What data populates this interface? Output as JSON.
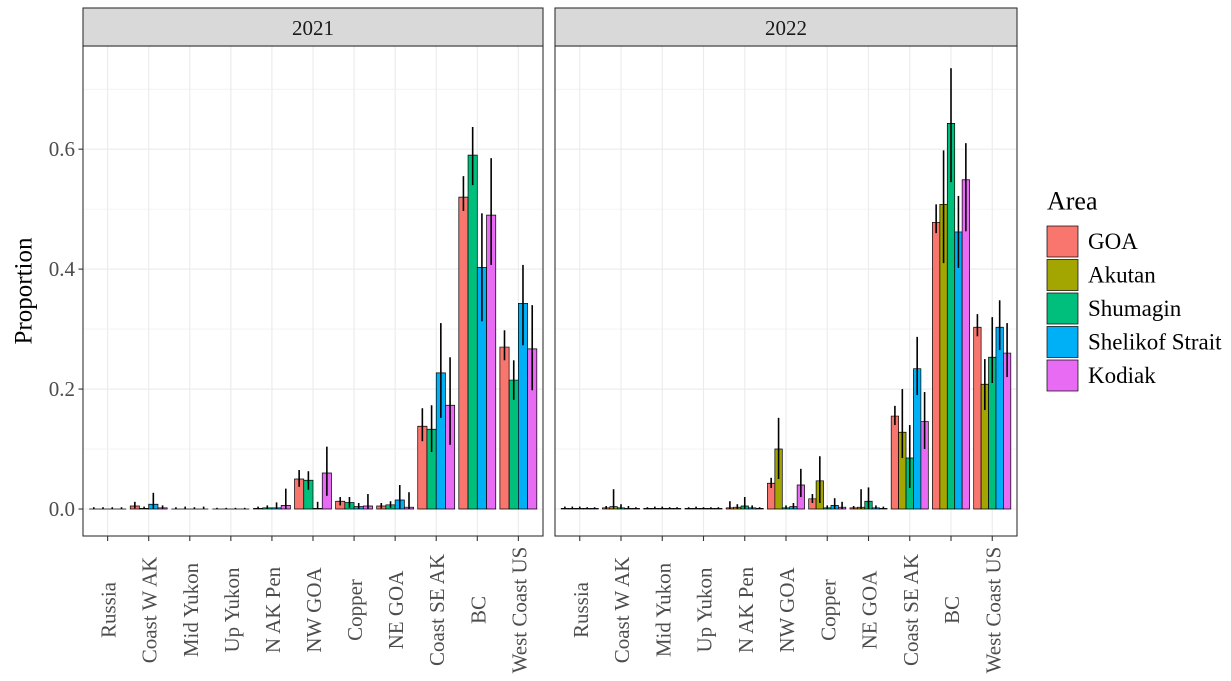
{
  "chart_data": {
    "type": "bar",
    "categories": [
      "Russia",
      "Coast W AK",
      "Mid Yukon",
      "Up Yukon",
      "N AK Pen",
      "NW GOA",
      "Copper",
      "NE GOA",
      "Coast SE AK",
      "BC",
      "West Coast US"
    ],
    "ylabel": "Proportion",
    "ylim": [
      -0.045,
      0.772
    ],
    "y_ticks": [
      0,
      0.2,
      0.4,
      0.6
    ],
    "y_tick_labels": [
      "0.0",
      "0.2",
      "0.4",
      "0.6"
    ],
    "grid": true,
    "error_bars": true,
    "legend": {
      "title": "Area",
      "position": "right",
      "items": [
        {
          "label": "GOA",
          "color": "#F8766D"
        },
        {
          "label": "Akutan",
          "color": "#A3A500"
        },
        {
          "label": "Shumagin",
          "color": "#00BF7D"
        },
        {
          "label": "Shelikof Strait",
          "color": "#00B0F6"
        },
        {
          "label": "Kodiak",
          "color": "#E76BF3"
        }
      ]
    },
    "panels": [
      {
        "title": "2021",
        "series": [
          {
            "name": "GOA",
            "values": [
              0.0,
              0.005,
              0.0,
              0.0,
              0.001,
              0.05,
              0.013,
              0.005,
              0.138,
              0.52,
              0.27
            ],
            "lower": [
              0.0,
              0.001,
              0.0,
              0.0,
              0.0,
              0.037,
              0.006,
              0.001,
              0.113,
              0.497,
              0.248
            ],
            "upper": [
              0.003,
              0.012,
              0.003,
              0.002,
              0.004,
              0.065,
              0.02,
              0.01,
              0.168,
              0.555,
              0.298
            ]
          },
          {
            "name": "Shumagin",
            "values": [
              0.0,
              0.001,
              0.0,
              0.0,
              0.002,
              0.048,
              0.011,
              0.007,
              0.133,
              0.59,
              0.215
            ],
            "lower": [
              0.0,
              0.0,
              0.0,
              0.0,
              0.0,
              0.032,
              0.002,
              0.002,
              0.095,
              0.54,
              0.182
            ],
            "upper": [
              0.003,
              0.004,
              0.004,
              0.002,
              0.006,
              0.063,
              0.02,
              0.013,
              0.173,
              0.637,
              0.248
            ]
          },
          {
            "name": "Shelikof Strait",
            "values": [
              0.0,
              0.008,
              0.0,
              0.0,
              0.002,
              0.001,
              0.004,
              0.015,
              0.227,
              0.403,
              0.343
            ],
            "lower": [
              0.0,
              0.0,
              0.0,
              0.0,
              0.0,
              0.0,
              0.0,
              0.0,
              0.152,
              0.313,
              0.273
            ],
            "upper": [
              0.003,
              0.027,
              0.003,
              0.002,
              0.011,
              0.012,
              0.01,
              0.04,
              0.31,
              0.493,
              0.407
            ]
          },
          {
            "name": "Kodiak",
            "values": [
              0.0,
              0.002,
              0.0,
              0.0,
              0.006,
              0.06,
              0.005,
              0.003,
              0.173,
              0.49,
              0.267
            ],
            "lower": [
              0.0,
              0.0,
              0.0,
              0.0,
              0.0,
              0.022,
              0.0,
              0.0,
              0.107,
              0.407,
              0.198
            ],
            "upper": [
              0.003,
              0.006,
              0.004,
              0.002,
              0.034,
              0.104,
              0.025,
              0.028,
              0.253,
              0.585,
              0.34
            ]
          }
        ]
      },
      {
        "title": "2022",
        "series": [
          {
            "name": "GOA",
            "values": [
              0.001,
              0.002,
              0.001,
              0.001,
              0.002,
              0.043,
              0.017,
              0.002,
              0.155,
              0.478,
              0.303
            ],
            "lower": [
              0.0,
              0.0,
              0.0,
              0.0,
              0.0,
              0.035,
              0.01,
              0.0,
              0.14,
              0.46,
              0.288
            ],
            "upper": [
              0.004,
              0.005,
              0.003,
              0.003,
              0.013,
              0.052,
              0.025,
              0.005,
              0.172,
              0.508,
              0.325
            ]
          },
          {
            "name": "Akutan",
            "values": [
              0.001,
              0.004,
              0.001,
              0.001,
              0.003,
              0.1,
              0.047,
              0.003,
              0.128,
              0.508,
              0.208
            ],
            "lower": [
              0.0,
              0.0,
              0.0,
              0.0,
              0.0,
              0.05,
              0.01,
              0.0,
              0.085,
              0.41,
              0.165
            ],
            "upper": [
              0.004,
              0.033,
              0.004,
              0.004,
              0.008,
              0.152,
              0.088,
              0.033,
              0.2,
              0.598,
              0.25
            ]
          },
          {
            "name": "Shumagin",
            "values": [
              0.001,
              0.002,
              0.001,
              0.001,
              0.005,
              0.002,
              0.002,
              0.013,
              0.085,
              0.643,
              0.253
            ],
            "lower": [
              0.0,
              0.0,
              0.0,
              0.0,
              0.0,
              0.0,
              0.0,
              0.0,
              0.035,
              0.545,
              0.21
            ],
            "upper": [
              0.004,
              0.008,
              0.004,
              0.003,
              0.02,
              0.006,
              0.006,
              0.036,
              0.14,
              0.735,
              0.32
            ]
          },
          {
            "name": "Shelikof Strait",
            "values": [
              0.001,
              0.001,
              0.001,
              0.001,
              0.002,
              0.004,
              0.006,
              0.002,
              0.234,
              0.462,
              0.303
            ],
            "lower": [
              0.0,
              0.0,
              0.0,
              0.0,
              0.0,
              0.0,
              0.0,
              0.0,
              0.19,
              0.402,
              0.265
            ],
            "upper": [
              0.003,
              0.005,
              0.003,
              0.003,
              0.006,
              0.01,
              0.018,
              0.006,
              0.287,
              0.522,
              0.348
            ]
          },
          {
            "name": "Kodiak",
            "values": [
              0.001,
              0.001,
              0.001,
              0.001,
              0.001,
              0.04,
              0.003,
              0.001,
              0.146,
              0.549,
              0.26
            ],
            "lower": [
              0.0,
              0.0,
              0.0,
              0.0,
              0.0,
              0.02,
              0.0,
              0.0,
              0.1,
              0.463,
              0.22
            ],
            "upper": [
              0.003,
              0.003,
              0.003,
              0.003,
              0.003,
              0.067,
              0.012,
              0.004,
              0.195,
              0.61,
              0.31
            ]
          }
        ]
      }
    ]
  }
}
